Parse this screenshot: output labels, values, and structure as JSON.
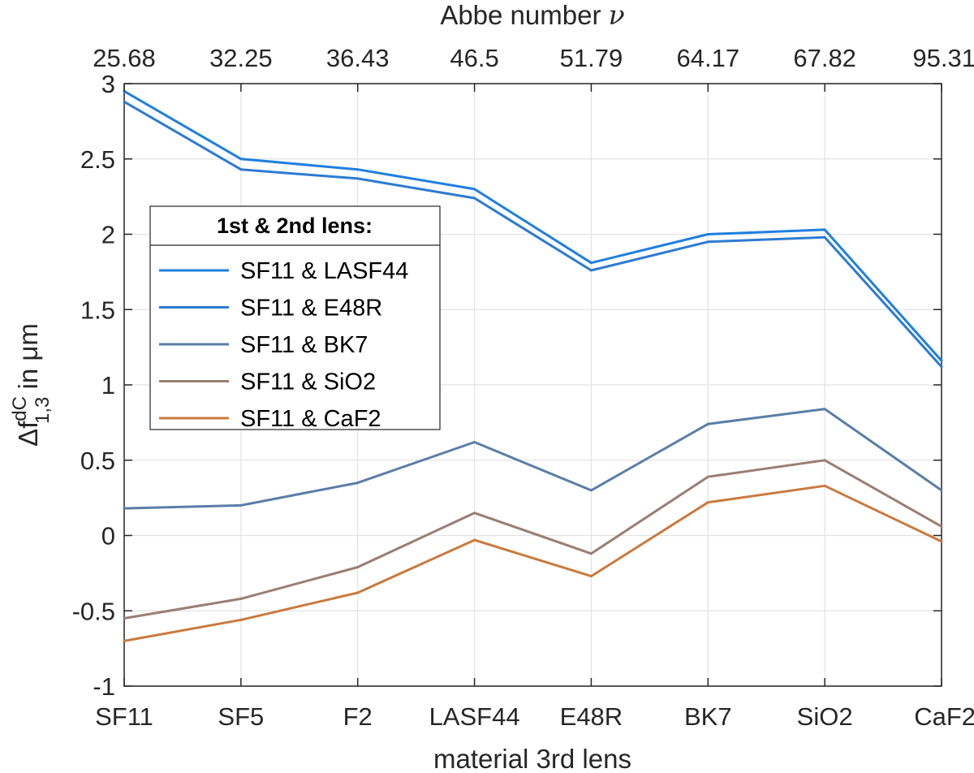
{
  "chart_data": {
    "type": "line",
    "xlabel": "material 3rd lens",
    "x2label": "Abbe number",
    "x2label_symbol": "ν",
    "ylabel": "Δf",
    "ylabel_sup": "dC",
    "ylabel_sub": "1,3",
    "ylabel_suffix": " in μm",
    "categories": [
      "SF11",
      "SF5",
      "F2",
      "LASF44",
      "E48R",
      "BK7",
      "SiO2",
      "CaF2"
    ],
    "top_ticks": [
      "25.68",
      "32.25",
      "36.43",
      "46.5",
      "51.79",
      "64.17",
      "67.82",
      "95.31"
    ],
    "ylim": [
      -1,
      3
    ],
    "yticks": [
      -1,
      -0.5,
      0,
      0.5,
      1,
      1.5,
      2,
      2.5,
      3
    ],
    "ytick_labels": [
      "-1",
      "-0.5",
      "0",
      "0.5",
      "1",
      "1.5",
      "2",
      "2.5",
      "3"
    ],
    "grid": true,
    "legend": {
      "title": "1st & 2nd lens:",
      "placement": "upper-left"
    },
    "series": [
      {
        "name": "SF11 & LASF44",
        "color": "#1f7fe0",
        "values": [
          2.95,
          2.5,
          2.43,
          2.3,
          1.81,
          2.0,
          2.03,
          1.16
        ]
      },
      {
        "name": "SF11 & E48R",
        "color": "#2d7bd0",
        "values": [
          2.88,
          2.43,
          2.37,
          2.24,
          1.76,
          1.95,
          1.98,
          1.12
        ]
      },
      {
        "name": "SF11 & BK7",
        "color": "#5a7ea8",
        "values": [
          0.18,
          0.2,
          0.35,
          0.62,
          0.3,
          0.74,
          0.84,
          0.3
        ]
      },
      {
        "name": "SF11 & SiO2",
        "color": "#9a7e74",
        "values": [
          -0.55,
          -0.42,
          -0.21,
          0.15,
          -0.12,
          0.39,
          0.5,
          0.06
        ]
      },
      {
        "name": "SF11 & CaF2",
        "color": "#c97a3e",
        "values": [
          -0.7,
          -0.56,
          -0.38,
          -0.03,
          -0.27,
          0.22,
          0.33,
          -0.04
        ]
      }
    ]
  }
}
